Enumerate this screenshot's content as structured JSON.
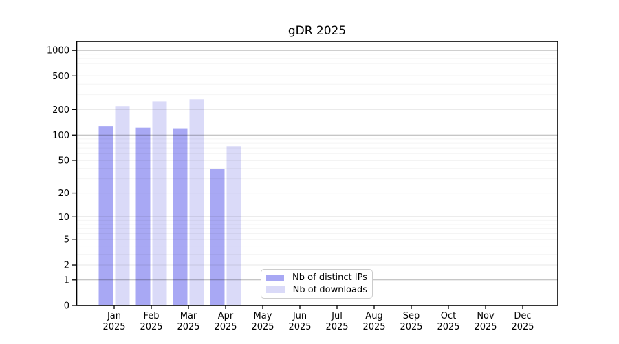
{
  "chart_data": {
    "type": "bar",
    "title": "gDR 2025",
    "categories": [
      "Jan",
      "Feb",
      "Mar",
      "Apr",
      "May",
      "Jun",
      "Jul",
      "Aug",
      "Sep",
      "Oct",
      "Nov",
      "Dec"
    ],
    "category_year": "2025",
    "series": [
      {
        "name": "Nb of distinct IPs",
        "color": "#a8a8f4",
        "values": [
          128,
          122,
          120,
          39,
          null,
          null,
          null,
          null,
          null,
          null,
          null,
          null
        ]
      },
      {
        "name": "Nb of downloads",
        "color": "#dadaf8",
        "values": [
          220,
          250,
          265,
          74,
          null,
          null,
          null,
          null,
          null,
          null,
          null,
          null
        ]
      }
    ],
    "y_axis": {
      "scale": "log1p",
      "tick_labels": [
        0,
        1,
        2,
        5,
        10,
        20,
        50,
        100,
        200,
        500,
        1000
      ],
      "major_gridlines": [
        1,
        10,
        100,
        1000
      ],
      "ylim": [
        0,
        1300
      ]
    },
    "x_axis": {
      "tick_count": 12
    },
    "legend": {
      "position": "lower center"
    },
    "grid": true
  },
  "colors": {
    "spine": "#000000",
    "major_grid": "rgba(0,0,0,0.30)",
    "minor_grid": "rgba(0,0,0,0.095)",
    "faint_grid": "rgba(0,0,0,0.045)",
    "tick_label": "#000000"
  }
}
